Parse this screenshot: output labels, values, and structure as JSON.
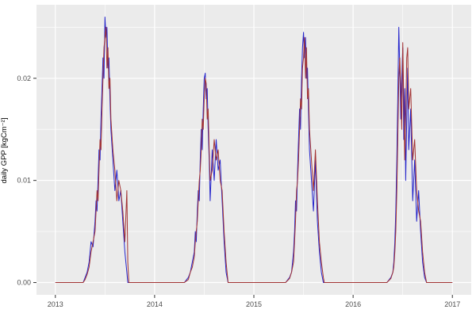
{
  "chart_data": {
    "type": "line",
    "title": "",
    "xlabel": "",
    "ylabel": "daily GPP [kgCm⁻²]",
    "legend": "none",
    "panel_bg": "#ebebeb",
    "grid_color": "#ffffff",
    "tick_color": "#333333",
    "tick_label_color": "#4d4d4d",
    "xlim": [
      2012.81,
      2017.19
    ],
    "ylim": [
      -0.0012,
      0.0272
    ],
    "x_ticks": [
      2013,
      2014,
      2015,
      2016,
      2017
    ],
    "x_tick_labels": [
      "2013",
      "2014",
      "2015",
      "2016",
      "2017"
    ],
    "x_minor_ticks": [
      2013.5,
      2014.5,
      2015.5,
      2016.5
    ],
    "y_ticks": [
      0.0,
      0.01,
      0.02
    ],
    "y_tick_labels": [
      "0.00",
      "0.01",
      "0.02"
    ],
    "y_minor_ticks": [
      0.005,
      0.015,
      0.025
    ],
    "series": [
      {
        "name": "blue-line",
        "color": "#2525cc",
        "points": [
          [
            2013.0,
            0
          ],
          [
            2013.28,
            0
          ],
          [
            2013.3,
            0.0005
          ],
          [
            2013.32,
            0.001
          ],
          [
            2013.34,
            0.002
          ],
          [
            2013.36,
            0.004
          ],
          [
            2013.38,
            0.0035
          ],
          [
            2013.4,
            0.006
          ],
          [
            2013.41,
            0.008
          ],
          [
            2013.42,
            0.007
          ],
          [
            2013.43,
            0.01
          ],
          [
            2013.44,
            0.013
          ],
          [
            2013.45,
            0.012
          ],
          [
            2013.46,
            0.016
          ],
          [
            2013.47,
            0.019
          ],
          [
            2013.48,
            0.022
          ],
          [
            2013.49,
            0.02
          ],
          [
            2013.5,
            0.026
          ],
          [
            2013.51,
            0.024
          ],
          [
            2013.52,
            0.025
          ],
          [
            2013.53,
            0.021
          ],
          [
            2013.54,
            0.022
          ],
          [
            2013.55,
            0.018
          ],
          [
            2013.56,
            0.015
          ],
          [
            2013.58,
            0.012
          ],
          [
            2013.6,
            0.009
          ],
          [
            2013.62,
            0.011
          ],
          [
            2013.64,
            0.008
          ],
          [
            2013.66,
            0.009
          ],
          [
            2013.68,
            0.006
          ],
          [
            2013.7,
            0.003
          ],
          [
            2013.72,
            0.001
          ],
          [
            2013.73,
            0
          ],
          [
            2014.3,
            0
          ],
          [
            2014.34,
            0.0005
          ],
          [
            2014.36,
            0.001
          ],
          [
            2014.38,
            0.002
          ],
          [
            2014.4,
            0.003
          ],
          [
            2014.41,
            0.005
          ],
          [
            2014.42,
            0.004
          ],
          [
            2014.43,
            0.007
          ],
          [
            2014.44,
            0.009
          ],
          [
            2014.45,
            0.008
          ],
          [
            2014.46,
            0.012
          ],
          [
            2014.47,
            0.015
          ],
          [
            2014.48,
            0.013
          ],
          [
            2014.49,
            0.017
          ],
          [
            2014.5,
            0.02
          ],
          [
            2014.51,
            0.0205
          ],
          [
            2014.52,
            0.018
          ],
          [
            2014.53,
            0.019
          ],
          [
            2014.54,
            0.015
          ],
          [
            2014.55,
            0.012
          ],
          [
            2014.56,
            0.008
          ],
          [
            2014.58,
            0.013
          ],
          [
            2014.6,
            0.01
          ],
          [
            2014.62,
            0.014
          ],
          [
            2014.64,
            0.011
          ],
          [
            2014.66,
            0.012
          ],
          [
            2014.68,
            0.008
          ],
          [
            2014.7,
            0.004
          ],
          [
            2014.72,
            0.001
          ],
          [
            2014.74,
            0
          ],
          [
            2015.32,
            0
          ],
          [
            2015.36,
            0.0005
          ],
          [
            2015.38,
            0.001
          ],
          [
            2015.4,
            0.003
          ],
          [
            2015.41,
            0.005
          ],
          [
            2015.42,
            0.008
          ],
          [
            2015.43,
            0.007
          ],
          [
            2015.44,
            0.011
          ],
          [
            2015.45,
            0.014
          ],
          [
            2015.46,
            0.017
          ],
          [
            2015.47,
            0.015
          ],
          [
            2015.48,
            0.02
          ],
          [
            2015.49,
            0.023
          ],
          [
            2015.5,
            0.0245
          ],
          [
            2015.51,
            0.022
          ],
          [
            2015.52,
            0.024
          ],
          [
            2015.53,
            0.02
          ],
          [
            2015.54,
            0.021
          ],
          [
            2015.55,
            0.017
          ],
          [
            2015.56,
            0.013
          ],
          [
            2015.58,
            0.01
          ],
          [
            2015.6,
            0.007
          ],
          [
            2015.62,
            0.012
          ],
          [
            2015.64,
            0.006
          ],
          [
            2015.66,
            0.003
          ],
          [
            2015.68,
            0.001
          ],
          [
            2015.7,
            0
          ],
          [
            2016.34,
            0
          ],
          [
            2016.38,
            0.0005
          ],
          [
            2016.4,
            0.001
          ],
          [
            2016.41,
            0.002
          ],
          [
            2016.42,
            0.004
          ],
          [
            2016.43,
            0.007
          ],
          [
            2016.44,
            0.012
          ],
          [
            2016.45,
            0.018
          ],
          [
            2016.46,
            0.025
          ],
          [
            2016.47,
            0.021
          ],
          [
            2016.48,
            0.016
          ],
          [
            2016.49,
            0.02
          ],
          [
            2016.5,
            0.023
          ],
          [
            2016.51,
            0.014
          ],
          [
            2016.52,
            0.019
          ],
          [
            2016.53,
            0.01
          ],
          [
            2016.54,
            0.016
          ],
          [
            2016.55,
            0.021
          ],
          [
            2016.56,
            0.013
          ],
          [
            2016.58,
            0.017
          ],
          [
            2016.6,
            0.008
          ],
          [
            2016.62,
            0.012
          ],
          [
            2016.64,
            0.006
          ],
          [
            2016.66,
            0.009
          ],
          [
            2016.68,
            0.005
          ],
          [
            2016.7,
            0.002
          ],
          [
            2016.72,
            0.0005
          ],
          [
            2016.74,
            0
          ],
          [
            2017.0,
            0
          ]
        ]
      },
      {
        "name": "dark-red-line",
        "color": "#a33333",
        "points": [
          [
            2013.0,
            0
          ],
          [
            2013.28,
            0
          ],
          [
            2013.3,
            0.0003
          ],
          [
            2013.32,
            0.0008
          ],
          [
            2013.34,
            0.0015
          ],
          [
            2013.36,
            0.003
          ],
          [
            2013.38,
            0.004
          ],
          [
            2013.4,
            0.005
          ],
          [
            2013.41,
            0.007
          ],
          [
            2013.42,
            0.009
          ],
          [
            2013.43,
            0.008
          ],
          [
            2013.44,
            0.011
          ],
          [
            2013.45,
            0.014
          ],
          [
            2013.46,
            0.013
          ],
          [
            2013.47,
            0.017
          ],
          [
            2013.48,
            0.02
          ],
          [
            2013.49,
            0.023
          ],
          [
            2013.5,
            0.024
          ],
          [
            2013.51,
            0.025
          ],
          [
            2013.52,
            0.021
          ],
          [
            2013.53,
            0.023
          ],
          [
            2013.54,
            0.019
          ],
          [
            2013.55,
            0.02
          ],
          [
            2013.56,
            0.016
          ],
          [
            2013.58,
            0.013
          ],
          [
            2013.6,
            0.011
          ],
          [
            2013.62,
            0.008
          ],
          [
            2013.64,
            0.01
          ],
          [
            2013.66,
            0.009
          ],
          [
            2013.68,
            0.007
          ],
          [
            2013.7,
            0.004
          ],
          [
            2013.72,
            0.009
          ],
          [
            2013.73,
            0.002
          ],
          [
            2013.74,
            0
          ],
          [
            2014.3,
            0
          ],
          [
            2014.34,
            0.0003
          ],
          [
            2014.36,
            0.001
          ],
          [
            2014.38,
            0.0015
          ],
          [
            2014.4,
            0.0025
          ],
          [
            2014.41,
            0.004
          ],
          [
            2014.42,
            0.005
          ],
          [
            2014.43,
            0.006
          ],
          [
            2014.44,
            0.008
          ],
          [
            2014.45,
            0.01
          ],
          [
            2014.46,
            0.011
          ],
          [
            2014.47,
            0.013
          ],
          [
            2014.48,
            0.016
          ],
          [
            2014.49,
            0.015
          ],
          [
            2014.5,
            0.018
          ],
          [
            2014.51,
            0.02
          ],
          [
            2014.52,
            0.0195
          ],
          [
            2014.53,
            0.016
          ],
          [
            2014.54,
            0.017
          ],
          [
            2014.55,
            0.013
          ],
          [
            2014.56,
            0.01
          ],
          [
            2014.58,
            0.011
          ],
          [
            2014.6,
            0.014
          ],
          [
            2014.62,
            0.012
          ],
          [
            2014.64,
            0.013
          ],
          [
            2014.66,
            0.01
          ],
          [
            2014.68,
            0.009
          ],
          [
            2014.7,
            0.005
          ],
          [
            2014.72,
            0.002
          ],
          [
            2014.74,
            0
          ],
          [
            2015.32,
            0
          ],
          [
            2015.36,
            0.0004
          ],
          [
            2015.38,
            0.001
          ],
          [
            2015.4,
            0.002
          ],
          [
            2015.41,
            0.004
          ],
          [
            2015.42,
            0.006
          ],
          [
            2015.43,
            0.009
          ],
          [
            2015.44,
            0.01
          ],
          [
            2015.45,
            0.012
          ],
          [
            2015.46,
            0.015
          ],
          [
            2015.47,
            0.018
          ],
          [
            2015.48,
            0.017
          ],
          [
            2015.49,
            0.021
          ],
          [
            2015.5,
            0.022
          ],
          [
            2015.51,
            0.024
          ],
          [
            2015.52,
            0.02
          ],
          [
            2015.53,
            0.023
          ],
          [
            2015.54,
            0.018
          ],
          [
            2015.55,
            0.019
          ],
          [
            2015.56,
            0.015
          ],
          [
            2015.58,
            0.012
          ],
          [
            2015.6,
            0.009
          ],
          [
            2015.62,
            0.013
          ],
          [
            2015.64,
            0.008
          ],
          [
            2015.66,
            0.004
          ],
          [
            2015.68,
            0.002
          ],
          [
            2015.7,
            0.0005
          ],
          [
            2015.71,
            0
          ],
          [
            2016.34,
            0
          ],
          [
            2016.38,
            0.0004
          ],
          [
            2016.4,
            0.001
          ],
          [
            2016.41,
            0.0015
          ],
          [
            2016.42,
            0.003
          ],
          [
            2016.43,
            0.005
          ],
          [
            2016.44,
            0.009
          ],
          [
            2016.45,
            0.014
          ],
          [
            2016.46,
            0.02
          ],
          [
            2016.47,
            0.022
          ],
          [
            2016.48,
            0.019
          ],
          [
            2016.49,
            0.015
          ],
          [
            2016.5,
            0.0235
          ],
          [
            2016.51,
            0.018
          ],
          [
            2016.52,
            0.012
          ],
          [
            2016.53,
            0.016
          ],
          [
            2016.54,
            0.022
          ],
          [
            2016.55,
            0.023
          ],
          [
            2016.56,
            0.017
          ],
          [
            2016.58,
            0.019
          ],
          [
            2016.6,
            0.012
          ],
          [
            2016.62,
            0.014
          ],
          [
            2016.64,
            0.009
          ],
          [
            2016.66,
            0.007
          ],
          [
            2016.68,
            0.006
          ],
          [
            2016.7,
            0.003
          ],
          [
            2016.72,
            0.001
          ],
          [
            2016.74,
            0
          ],
          [
            2017.0,
            0
          ]
        ]
      }
    ]
  }
}
